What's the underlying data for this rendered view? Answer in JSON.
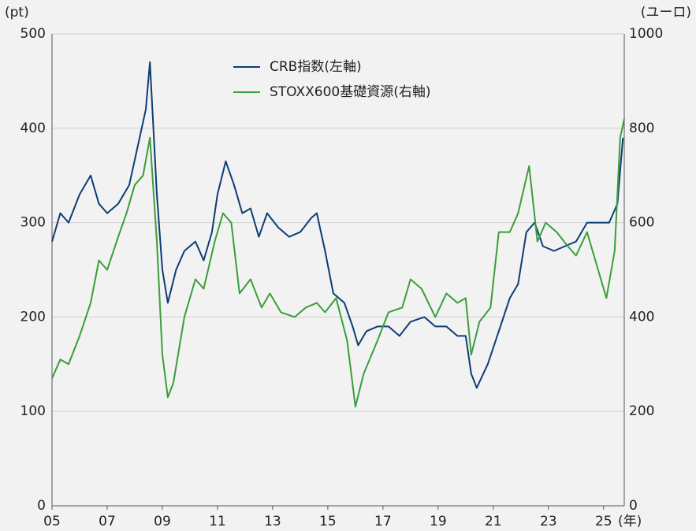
{
  "chart_data": {
    "type": "line",
    "y_unit": "(pt)",
    "y2_unit": "(ユーロ)",
    "x_unit": "(年)",
    "xlim": [
      2005,
      2025.75
    ],
    "xticks": [
      {
        "value": 2005,
        "label": "05"
      },
      {
        "value": 2007,
        "label": "07"
      },
      {
        "value": 2009,
        "label": "09"
      },
      {
        "value": 2011,
        "label": "11"
      },
      {
        "value": 2013,
        "label": "13"
      },
      {
        "value": 2015,
        "label": "15"
      },
      {
        "value": 2017,
        "label": "17"
      },
      {
        "value": 2019,
        "label": "19"
      },
      {
        "value": 2021,
        "label": "21"
      },
      {
        "value": 2023,
        "label": "23"
      },
      {
        "value": 2025,
        "label": "25"
      }
    ],
    "ylim": [
      0,
      500
    ],
    "yticks": [
      0,
      100,
      200,
      300,
      400,
      500
    ],
    "y2lim": [
      0,
      1000
    ],
    "y2ticks": [
      0,
      200,
      400,
      600,
      800,
      1000
    ],
    "grid": true,
    "series": [
      {
        "name": "CRB指数(左軸)",
        "color": "#0d3d73",
        "axis": "y",
        "x": [
          2005.0,
          2005.3,
          2005.6,
          2006.0,
          2006.4,
          2006.7,
          2007.0,
          2007.4,
          2007.8,
          2008.1,
          2008.4,
          2008.55,
          2008.8,
          2009.0,
          2009.2,
          2009.5,
          2009.8,
          2010.2,
          2010.5,
          2010.8,
          2011.0,
          2011.3,
          2011.6,
          2011.9,
          2012.2,
          2012.5,
          2012.8,
          2013.2,
          2013.6,
          2014.0,
          2014.4,
          2014.6,
          2014.9,
          2015.2,
          2015.6,
          2015.9,
          2016.1,
          2016.4,
          2016.8,
          2017.2,
          2017.6,
          2018.0,
          2018.5,
          2018.9,
          2019.3,
          2019.7,
          2020.0,
          2020.2,
          2020.4,
          2020.8,
          2021.2,
          2021.6,
          2021.9,
          2022.2,
          2022.5,
          2022.8,
          2023.2,
          2023.6,
          2024.0,
          2024.4,
          2024.8,
          2025.2,
          2025.5,
          2025.7
        ],
        "values": [
          280,
          310,
          300,
          330,
          350,
          320,
          310,
          320,
          340,
          380,
          420,
          470,
          330,
          250,
          215,
          250,
          270,
          280,
          260,
          290,
          330,
          365,
          340,
          310,
          315,
          285,
          310,
          295,
          285,
          290,
          305,
          310,
          270,
          225,
          215,
          190,
          170,
          185,
          190,
          190,
          180,
          195,
          200,
          190,
          190,
          180,
          180,
          140,
          125,
          150,
          185,
          220,
          235,
          290,
          300,
          275,
          270,
          275,
          280,
          300,
          300,
          300,
          320,
          390
        ]
      },
      {
        "name": "STOXX600基礎資源(右軸)",
        "color": "#3a9e3a",
        "axis": "y2",
        "x": [
          2005.0,
          2005.3,
          2005.6,
          2006.0,
          2006.4,
          2006.7,
          2007.0,
          2007.4,
          2007.7,
          2008.0,
          2008.3,
          2008.55,
          2008.8,
          2009.0,
          2009.2,
          2009.4,
          2009.8,
          2010.2,
          2010.5,
          2010.9,
          2011.2,
          2011.5,
          2011.8,
          2012.2,
          2012.6,
          2012.9,
          2013.3,
          2013.8,
          2014.2,
          2014.6,
          2014.9,
          2015.3,
          2015.7,
          2016.0,
          2016.3,
          2016.8,
          2017.2,
          2017.7,
          2018.0,
          2018.4,
          2018.9,
          2019.3,
          2019.7,
          2020.0,
          2020.2,
          2020.5,
          2020.9,
          2021.2,
          2021.6,
          2021.9,
          2022.3,
          2022.6,
          2022.9,
          2023.3,
          2023.7,
          2024.0,
          2024.4,
          2024.8,
          2025.1,
          2025.4,
          2025.6,
          2025.75
        ],
        "values": [
          270,
          310,
          300,
          360,
          430,
          520,
          500,
          570,
          620,
          680,
          700,
          780,
          560,
          320,
          230,
          260,
          400,
          480,
          460,
          560,
          620,
          600,
          450,
          480,
          420,
          450,
          410,
          400,
          420,
          430,
          410,
          440,
          350,
          210,
          280,
          350,
          410,
          420,
          480,
          460,
          400,
          450,
          430,
          440,
          320,
          390,
          420,
          580,
          580,
          620,
          720,
          560,
          600,
          580,
          550,
          530,
          580,
          500,
          440,
          540,
          780,
          820
        ]
      }
    ]
  }
}
